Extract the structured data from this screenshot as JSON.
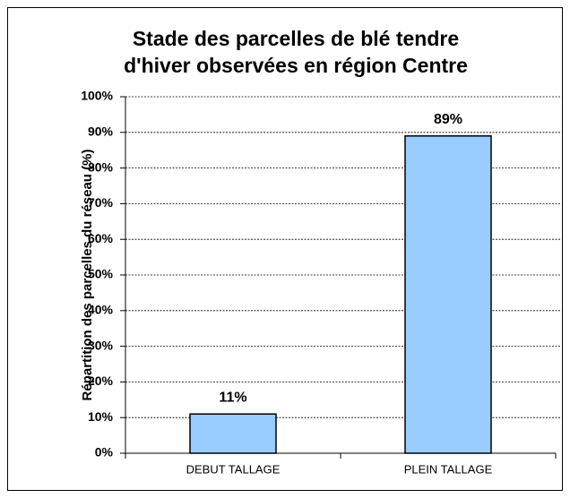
{
  "chart_data": {
    "type": "bar",
    "title": [
      "Stade des parcelles de blé tendre",
      "d'hiver observées en région Centre"
    ],
    "y_label": "Répartition des parcelles du réseau (%)",
    "categories": [
      "DEBUT TALLAGE",
      "PLEIN TALLAGE"
    ],
    "values": [
      11,
      89
    ],
    "value_labels": [
      "11%",
      "89%"
    ],
    "color": "#99ccff",
    "ylim": [
      0,
      100
    ],
    "yticks": [
      {
        "value": 0,
        "label": "0%"
      },
      {
        "value": 10,
        "label": "10%"
      },
      {
        "value": 20,
        "label": "20%"
      },
      {
        "value": 30,
        "label": "30%"
      },
      {
        "value": 40,
        "label": "40%"
      },
      {
        "value": 50,
        "label": "50%"
      },
      {
        "value": 60,
        "label": "60%"
      },
      {
        "value": 70,
        "label": "70%"
      },
      {
        "value": 80,
        "label": "80%"
      },
      {
        "value": 90,
        "label": "90%"
      },
      {
        "value": 100,
        "label": "100%"
      }
    ],
    "grid": true
  }
}
